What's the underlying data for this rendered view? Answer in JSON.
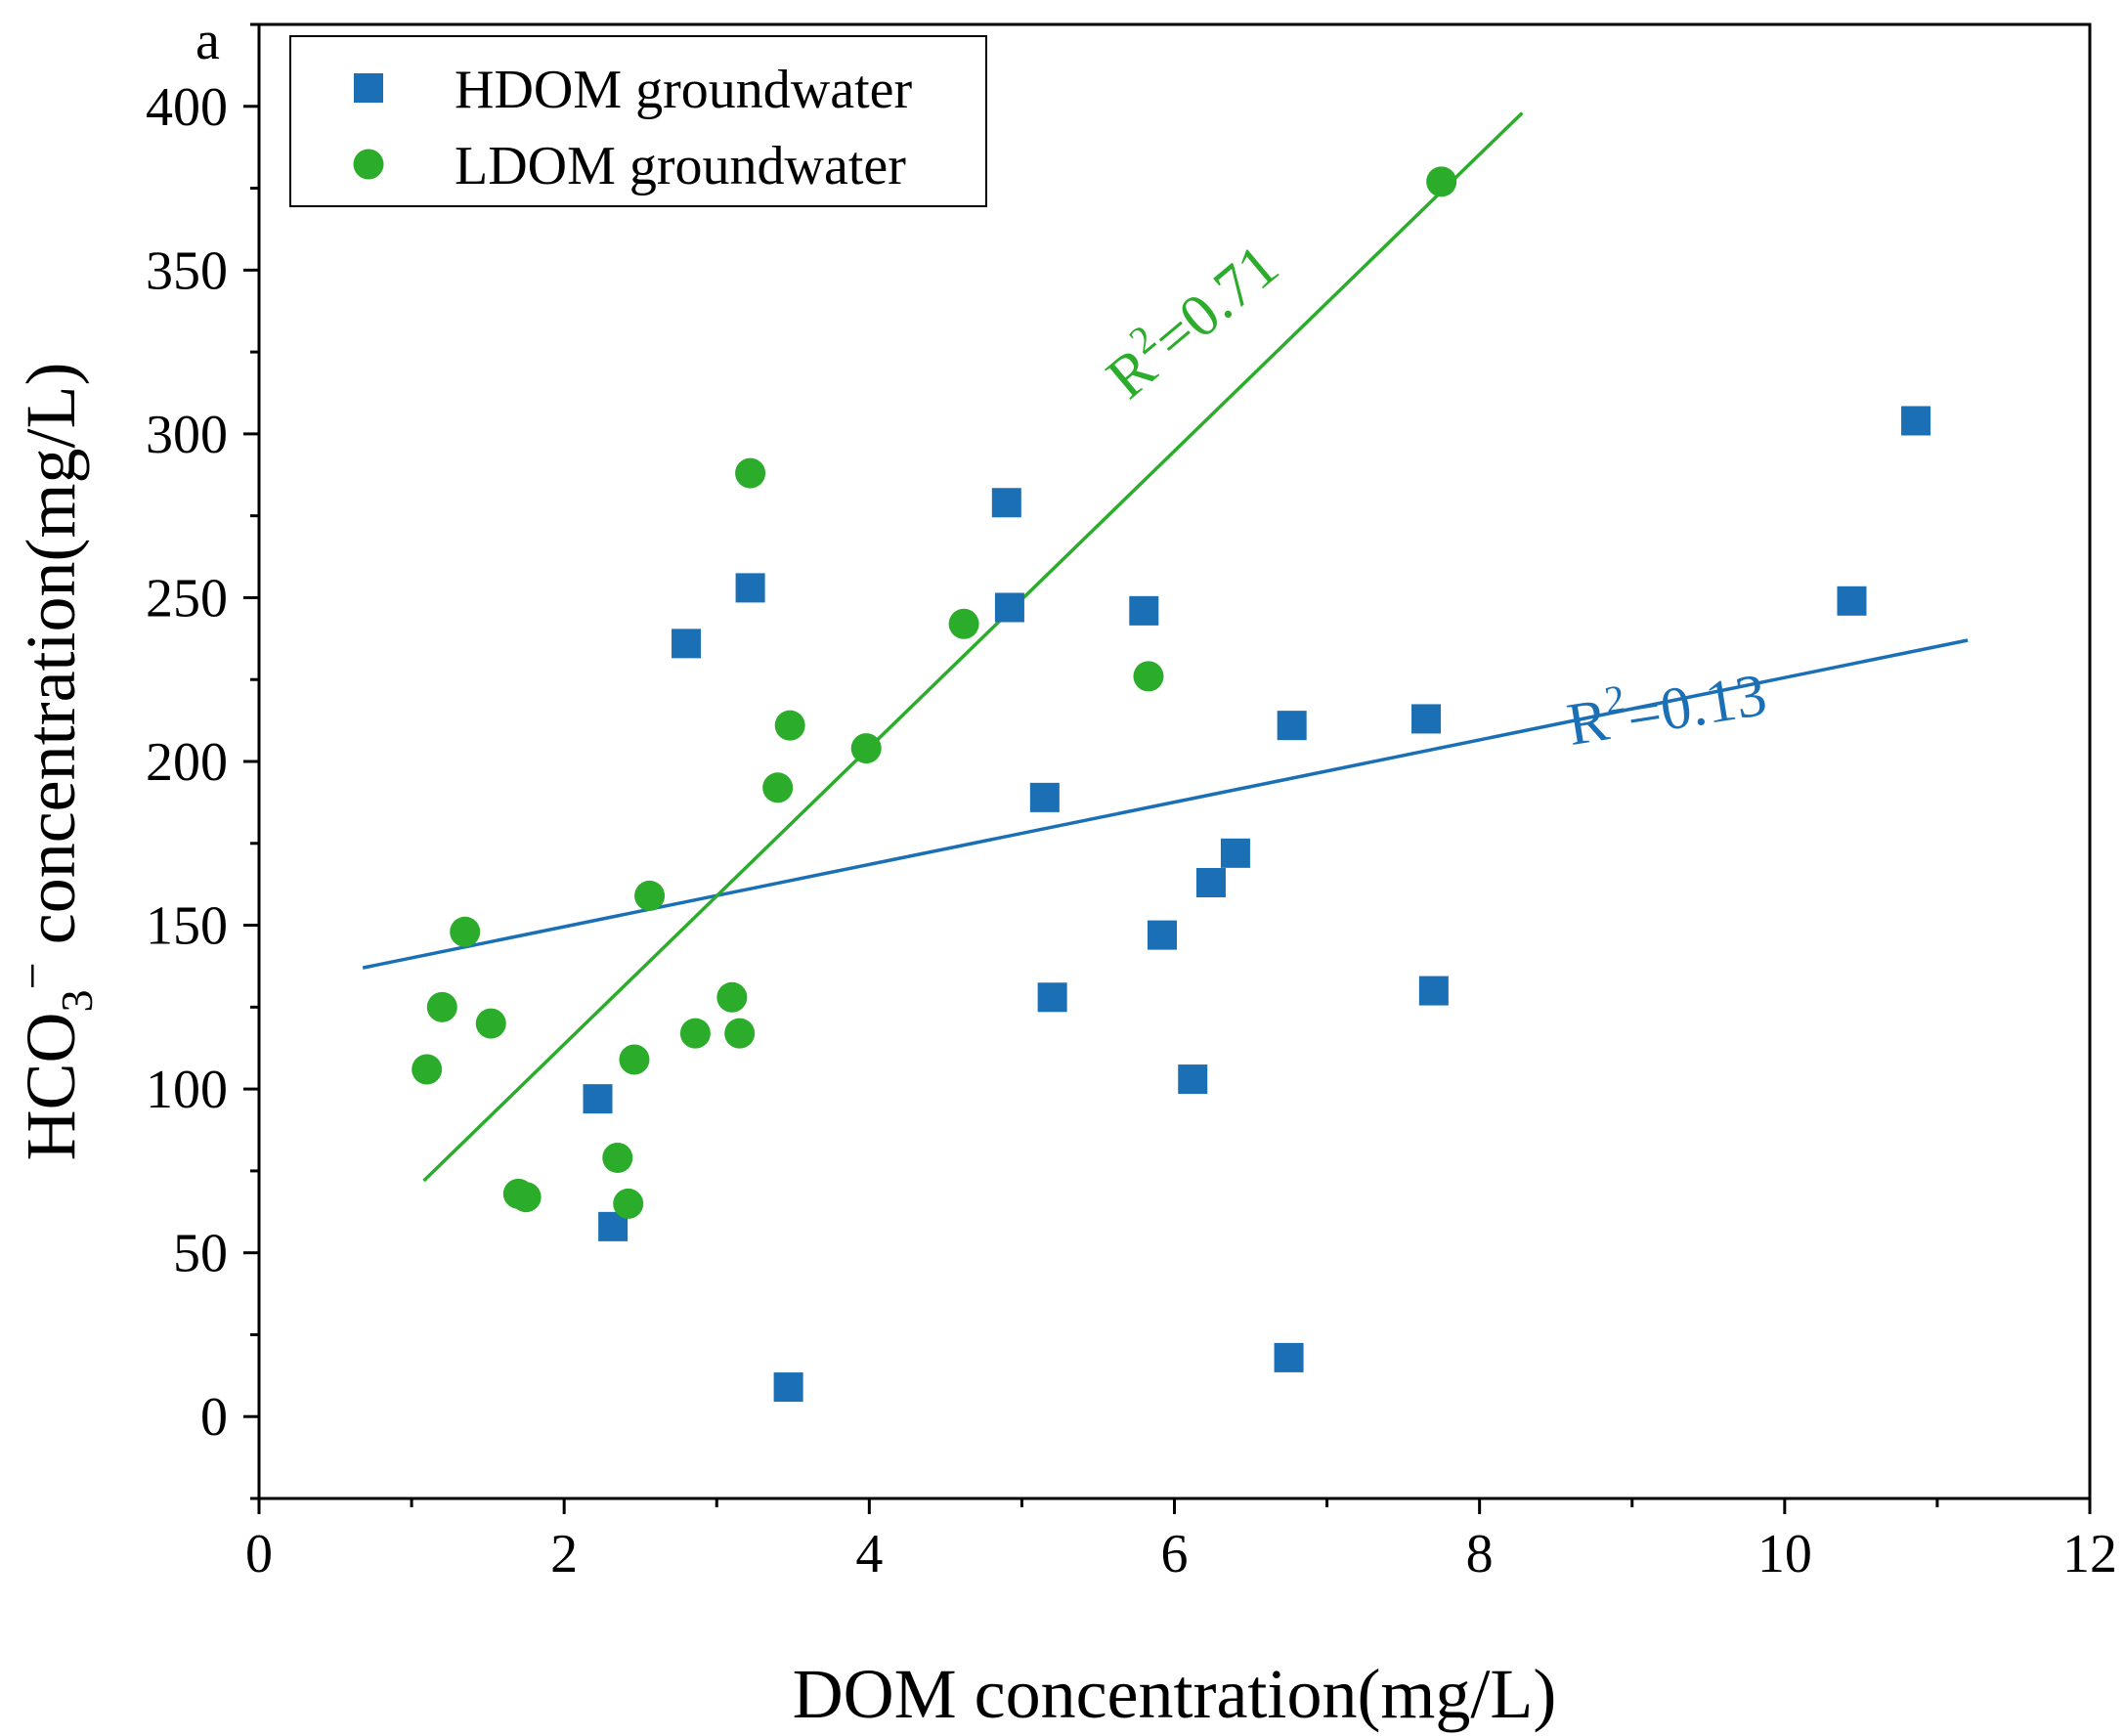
{
  "panel_label": "a",
  "chart_data": {
    "type": "scatter",
    "title": "",
    "xlabel": "DOM concentration(mg/L)",
    "ylabel": {
      "base": "HCO",
      "sub": "3",
      "sup": "−",
      "rest": " concentration(mg/L)"
    },
    "xlim": [
      0,
      12
    ],
    "ylim": [
      -25,
      425
    ],
    "x_ticks": [
      0,
      2,
      4,
      6,
      8,
      10,
      12
    ],
    "y_ticks": [
      0,
      50,
      100,
      150,
      200,
      250,
      300,
      350,
      400
    ],
    "grid": false,
    "legend_position": "top-left",
    "series": [
      {
        "name": "HDOM groundwater",
        "marker": "square",
        "color": "#1a6fb5",
        "points": [
          [
            2.22,
            97
          ],
          [
            2.32,
            58
          ],
          [
            2.8,
            236
          ],
          [
            3.22,
            253
          ],
          [
            3.47,
            9
          ],
          [
            4.9,
            279
          ],
          [
            4.92,
            247
          ],
          [
            5.15,
            189
          ],
          [
            5.2,
            128
          ],
          [
            5.8,
            246
          ],
          [
            5.92,
            147
          ],
          [
            6.12,
            103
          ],
          [
            6.24,
            163
          ],
          [
            6.4,
            172
          ],
          [
            6.75,
            18
          ],
          [
            6.77,
            211
          ],
          [
            7.65,
            213
          ],
          [
            7.7,
            130
          ],
          [
            10.44,
            249
          ],
          [
            10.86,
            304
          ]
        ]
      },
      {
        "name": "LDOM groundwater",
        "marker": "circle",
        "color": "#2bac2b",
        "points": [
          [
            1.1,
            106
          ],
          [
            1.2,
            125
          ],
          [
            1.35,
            148
          ],
          [
            1.52,
            120
          ],
          [
            1.7,
            68
          ],
          [
            1.75,
            67
          ],
          [
            2.35,
            79
          ],
          [
            2.42,
            65
          ],
          [
            2.46,
            109
          ],
          [
            2.56,
            159
          ],
          [
            2.86,
            117
          ],
          [
            3.1,
            128
          ],
          [
            3.15,
            117
          ],
          [
            3.22,
            288
          ],
          [
            3.4,
            192
          ],
          [
            3.48,
            211
          ],
          [
            3.98,
            204
          ],
          [
            4.62,
            242
          ],
          [
            5.83,
            226
          ],
          [
            7.75,
            377
          ]
        ]
      }
    ],
    "fit_lines": [
      {
        "series": "HDOM groundwater",
        "color": "#1a6fb5",
        "x": [
          0.68,
          11.2
        ],
        "y": [
          137,
          237
        ],
        "label": {
          "base": "R",
          "sup": "2",
          "rest": "=0.13"
        },
        "label_at": [
          8.6,
          205
        ],
        "label_angle": -9
      },
      {
        "series": "LDOM groundwater",
        "color": "#2bac2b",
        "x": [
          1.08,
          8.28
        ],
        "y": [
          72,
          398
        ],
        "label": {
          "base": "R",
          "sup": "2",
          "rest": "=0.71"
        },
        "label_at": [
          5.7,
          310
        ],
        "label_angle": -40
      }
    ]
  }
}
